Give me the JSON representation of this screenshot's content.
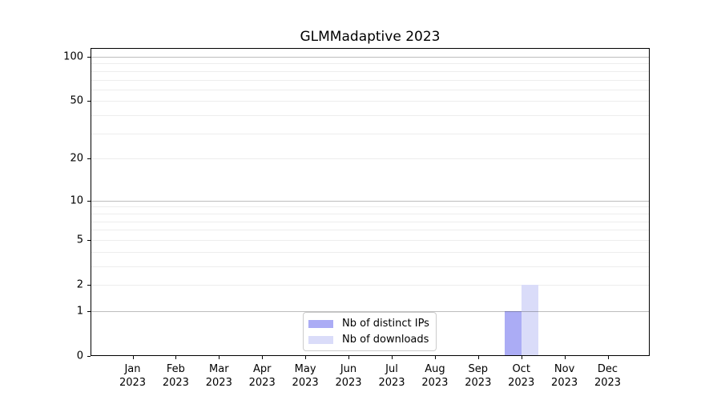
{
  "title": "GLMMadaptive 2023",
  "colors": {
    "bar_distinct_ips": "#abacf5",
    "bar_downloads": "#dadcf9",
    "axis": "#000000",
    "major_grid": "#bdbdbd",
    "minor_grid": "#ededed",
    "legend_border": "#cccccc",
    "background": "#ffffff"
  },
  "chart_data": {
    "type": "bar",
    "title": "GLMMadaptive 2023",
    "categories": [
      "Jan 2023",
      "Feb 2023",
      "Mar 2023",
      "Apr 2023",
      "May 2023",
      "Jun 2023",
      "Jul 2023",
      "Aug 2023",
      "Sep 2023",
      "Oct 2023",
      "Nov 2023",
      "Dec 2023"
    ],
    "series": [
      {
        "name": "Nb of distinct IPs",
        "color": "#abacf5",
        "values": [
          0,
          0,
          0,
          0,
          0,
          0,
          0,
          0,
          0,
          1,
          0,
          0
        ]
      },
      {
        "name": "Nb of downloads",
        "color": "#dadcf9",
        "values": [
          0,
          0,
          0,
          0,
          0,
          0,
          0,
          0,
          0,
          2,
          0,
          0
        ]
      }
    ],
    "xlabel": "",
    "ylabel": "",
    "yscale": "log1p",
    "ylim": [
      0,
      115
    ],
    "y_ticks": [
      0,
      1,
      2,
      5,
      10,
      20,
      50,
      100
    ],
    "y_minor_gridlines": [
      2,
      3,
      4,
      5,
      6,
      7,
      8,
      9,
      20,
      30,
      40,
      50,
      60,
      70,
      80,
      90
    ],
    "y_major_gridlines": [
      1,
      10,
      100
    ],
    "grid": true,
    "legend_position": "lower center",
    "legend_entries": [
      "Nb of distinct IPs",
      "Nb of downloads"
    ]
  }
}
